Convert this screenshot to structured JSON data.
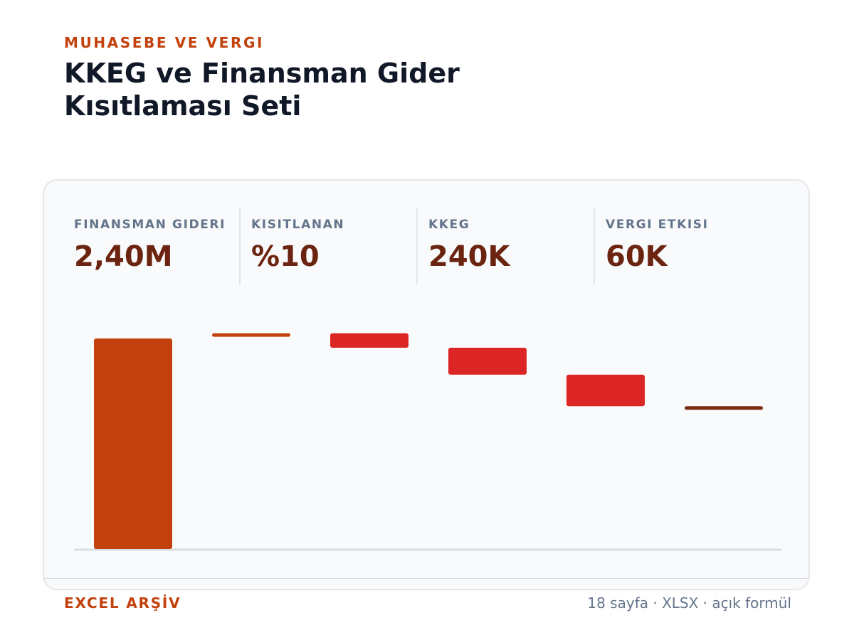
{
  "header": {
    "eyebrow": "MUHASEBE VE VERGI",
    "title": "KKEG ve Finansman Gider Kısıtlaması Seti"
  },
  "kpis": [
    {
      "label": "FINANSMAN GIDERI",
      "value": "2,40M"
    },
    {
      "label": "KISITLANAN",
      "value": "%10"
    },
    {
      "label": "KKEG",
      "value": "240K"
    },
    {
      "label": "VERGI ETKISI",
      "value": "60K"
    }
  ],
  "footer": {
    "left": "EXCEL ARŞİV",
    "right": "18 sayfa · XLSX · açık formül"
  },
  "colors": {
    "total": "#c2410c",
    "decrease": "#dc2626",
    "final": "#7c2d12",
    "baseline": "#d9dce2"
  },
  "chart_data": {
    "type": "bar",
    "subtype": "waterfall",
    "steps": [
      {
        "kind": "total",
        "start": 0,
        "end": 100
      },
      {
        "kind": "total",
        "start": 101.7,
        "end": 102.5
      },
      {
        "kind": "decrease",
        "start": 102.5,
        "end": 95.6
      },
      {
        "kind": "decrease",
        "start": 95.6,
        "end": 82.8
      },
      {
        "kind": "decrease",
        "start": 82.8,
        "end": 67.8
      },
      {
        "kind": "final",
        "start": 66.7,
        "end": 67.8
      }
    ],
    "ylim": [
      0,
      110
    ],
    "grid": false,
    "legend": "none"
  }
}
